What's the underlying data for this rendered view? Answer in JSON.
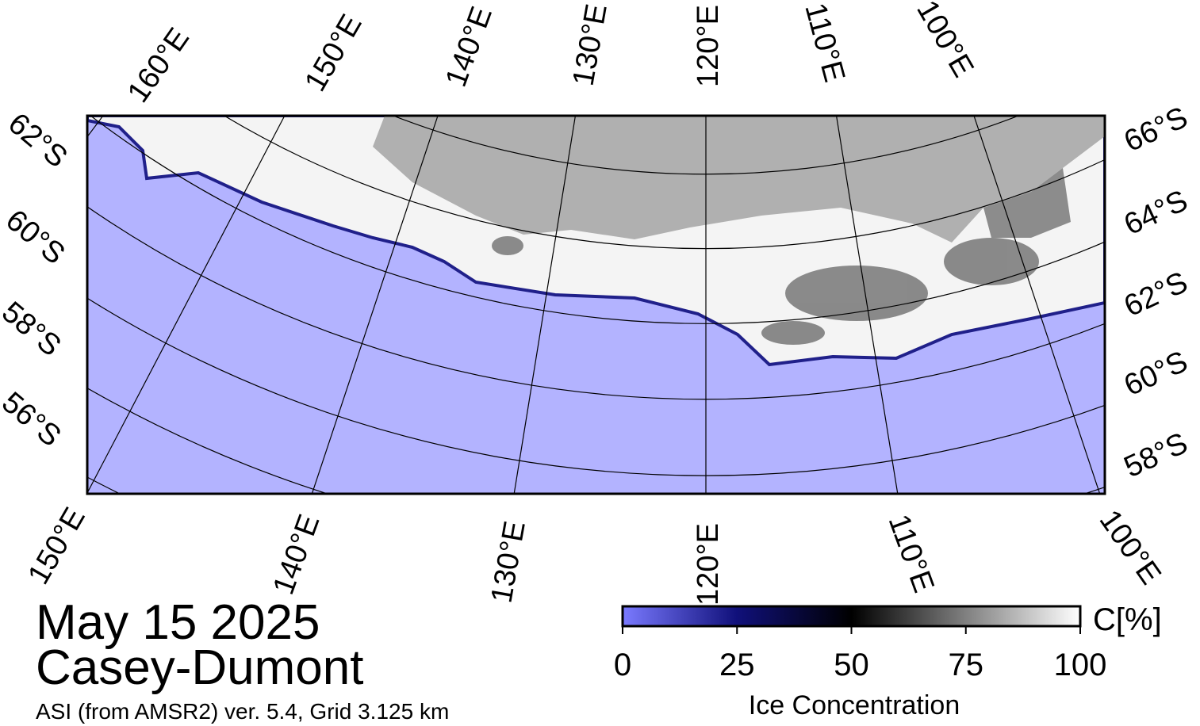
{
  "header": {
    "date": "May 15 2025",
    "region": "Casey-Dumont",
    "source": "ASI (from AMSR2) ver. 5.4,  Grid 3.125 km"
  },
  "map": {
    "top_lon_labels": [
      "160°E",
      "150°E",
      "140°E",
      "130°E",
      "120°E",
      "110°E",
      "100°E"
    ],
    "bottom_lon_labels": [
      "150°E",
      "140°E",
      "130°E",
      "120°E",
      "110°E",
      "100°E"
    ],
    "left_lat_labels": [
      "62°S",
      "60°S",
      "58°S",
      "56°S"
    ],
    "right_lat_labels": [
      "66°S",
      "64°S",
      "62°S",
      "60°S",
      "58°S"
    ]
  },
  "colorbar": {
    "title": "Ice Concentration",
    "unit": "C[%]",
    "lim": [
      0,
      100
    ],
    "ticks": [
      0,
      25,
      50,
      75,
      100
    ]
  }
}
